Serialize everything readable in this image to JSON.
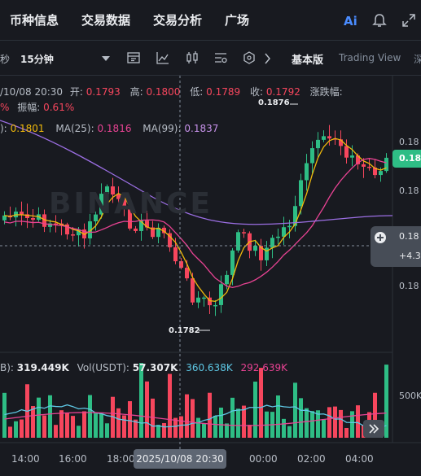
{
  "top_tabs": [
    "币种信息",
    "交易数据",
    "交易分析",
    "广场"
  ],
  "top_icons": {
    "ai": "ai-icon",
    "bell": "bell-icon",
    "expand": "expand-icon"
  },
  "toolbar": {
    "left_partial": "秒",
    "interval": "15分钟",
    "basic_view": "基本版",
    "tradingview": "Trading View",
    "right_partial": "深"
  },
  "ohlc": {
    "datetime": "/10/08 20:30",
    "open_label": "开:",
    "open": "0.1793",
    "high_label": "高:",
    "high": "0.1800",
    "low_label": "低:",
    "low": "0.1789",
    "close_label": "收:",
    "close": "0.1792",
    "change_label": "涨跌幅:",
    "change_partial": "%",
    "amplitude_label": "振幅:",
    "amplitude": "0.61%"
  },
  "ma": {
    "ma7_partial": "):",
    "ma7": "0.1801",
    "ma25_label": "MA(25):",
    "ma25": "0.1816",
    "ma99_label": "MA(99):",
    "ma99": "0.1837"
  },
  "vol": {
    "label1_partial": "B):",
    "value1": "319.449K",
    "label2": "Vol(USDT):",
    "value2": "57.307K",
    "value3": "360.638K",
    "value4": "292.639K"
  },
  "price_axis": [
    "0.18",
    "0.18",
    "0.18",
    "0.18"
  ],
  "current_price_tag": "0.18",
  "cross_price": {
    "price": "0.18",
    "change": "+4.3"
  },
  "vol_axis": "500K",
  "time_axis": [
    "14:00",
    "16:00",
    "18:00",
    "00:00",
    "02:00",
    "04:00"
  ],
  "cross_time": "2025/10/08 20:30",
  "annotations": {
    "high": "0.1876",
    "low": "0.1782"
  },
  "watermark": "BINANCE",
  "colors": {
    "up": "#2ebd85",
    "down": "#f6465d",
    "ma7": "#f0b90b",
    "ma25": "#e84393",
    "ma99": "#9c6fe4",
    "bg": "#181a20"
  }
}
